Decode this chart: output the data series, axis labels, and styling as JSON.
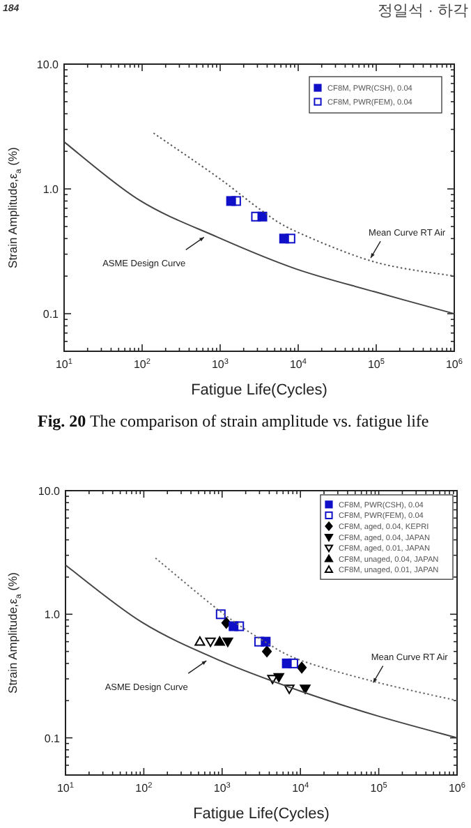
{
  "chart_data": [
    {
      "type": "line",
      "xlabel": "Fatigue Life(Cycles)",
      "ylabel": "Strain Amplitude,ε$_{a}$ (%)",
      "log": "xy",
      "xlim": [
        10,
        1000000
      ],
      "ylim": [
        0.05,
        10
      ],
      "xticks": [
        {
          "value": 10,
          "label": "10$^{1}$"
        },
        {
          "value": 100,
          "label": "10$^{2}$"
        },
        {
          "value": 1000,
          "label": "10$^{3}$"
        },
        {
          "value": 10000,
          "label": "10$^{4}$"
        },
        {
          "value": 100000,
          "label": "10$^{5}$"
        },
        {
          "value": 1000000,
          "label": "10$^{6}$"
        }
      ],
      "yticks": [
        {
          "value": 0.1,
          "label": "0.1"
        },
        {
          "value": 1,
          "label": "1.0"
        },
        {
          "value": 10,
          "label": "10.0"
        }
      ],
      "grid": false,
      "legend": "top right",
      "annotations": [
        {
          "text": "ASME Design Curve",
          "x": 620,
          "y": 0.41
        },
        {
          "text": "Mean Curve RT Air",
          "x": 85000,
          "y": 0.28
        },
        "184",
        "정일석 · 하각",
        "Fig. 20 The comparison of strain amplitude vs. fatigue life"
      ],
      "series": [
        {
          "x": [
            10,
            93,
            930,
            9100,
            95000,
            1000000
          ],
          "values": [
            2.38,
            0.81,
            0.41,
            0.23,
            0.15,
            0.1
          ],
          "color": "#444444",
          "line_style": "solid",
          "marker": "none"
        },
        {
          "x": [
            140,
            930,
            3300,
            9100,
            95000,
            1000000
          ],
          "values": [
            2.8,
            1.24,
            0.68,
            0.46,
            0.26,
            0.2
          ],
          "color": "#555555",
          "line_style": "dotted",
          "marker": "none"
        },
        {
          "type": "scatter",
          "name": "CF8M, PWR(CSH), 0.04",
          "x": [
            1380,
            3470,
            6600
          ],
          "values": [
            0.8,
            0.6,
            0.4
          ],
          "color": "#1010c8",
          "marker": "square"
        },
        {
          "type": "scatter",
          "name": "CF8M, PWR(FEM), 0.04",
          "x": [
            1600,
            2880,
            7950
          ],
          "values": [
            0.8,
            0.6,
            0.4
          ],
          "color": "#1010c8",
          "marker": "square_open"
        }
      ]
    },
    {
      "type": "line",
      "xlabel": "Fatigue Life(Cycles)",
      "ylabel": "Strain Amplitude,ε$_{a}$ (%)",
      "log": "xy",
      "xlim": [
        10,
        1000000
      ],
      "ylim": [
        0.05,
        10
      ],
      "xticks": [
        {
          "value": 10,
          "label": "10$^{1}$"
        },
        {
          "value": 100,
          "label": "10$^{2}$"
        },
        {
          "value": 1000,
          "label": "10$^{3}$"
        },
        {
          "value": 10000,
          "label": "10$^{4}$"
        },
        {
          "value": 100000,
          "label": "10$^{5}$"
        },
        {
          "value": 1000000,
          "label": "10$^{6}$"
        }
      ],
      "yticks": [
        {
          "value": 0.1,
          "label": "0.1"
        },
        {
          "value": 1,
          "label": "1.0"
        },
        {
          "value": 10,
          "label": "10.0"
        }
      ],
      "grid": false,
      "legend": "top right",
      "annotations": [
        {
          "text": "ASME Design Curve",
          "x": 630,
          "y": 0.42
        },
        {
          "text": "Mean Curve RT Air",
          "x": 85000,
          "y": 0.28
        }
      ],
      "series": [
        {
          "x": [
            10,
            95,
            955,
            9800,
            98000,
            1000000
          ],
          "values": [
            2.5,
            0.86,
            0.42,
            0.24,
            0.15,
            0.1
          ],
          "color": "#444444",
          "line_style": "solid",
          "marker": "none"
        },
        {
          "x": [
            141,
            955,
            3500,
            10500,
            98000,
            1000000
          ],
          "values": [
            2.85,
            1.05,
            0.6,
            0.42,
            0.28,
            0.2
          ],
          "color": "#666666",
          "line_style": "dotted",
          "marker": "none"
        },
        {
          "type": "scatter",
          "name": "CF8M, PWR(CSH), 0.04",
          "x": [
            1400,
            3600,
            6700
          ],
          "values": [
            0.8,
            0.6,
            0.4
          ],
          "color": "#1010c8",
          "marker": "square"
        },
        {
          "type": "scatter",
          "name": "CF8M, PWR(FEM), 0.04",
          "x": [
            960,
            1650,
            2970,
            8100
          ],
          "values": [
            1.0,
            0.8,
            0.6,
            0.4
          ],
          "color": "#1010c8",
          "marker": "square_open"
        },
        {
          "type": "scatter",
          "name": "CF8M, aged, 0.04, KEPRI",
          "x": [
            1130,
            3730,
            10400
          ],
          "values": [
            0.85,
            0.5,
            0.37
          ],
          "color": "#000000",
          "marker": "diamond"
        },
        {
          "type": "scatter",
          "name": "CF8M, aged, 0.04, JAPAN",
          "x": [
            1180,
            5300,
            11500
          ],
          "values": [
            0.6,
            0.31,
            0.25
          ],
          "color": "#000000",
          "marker": "triangle_down"
        },
        {
          "type": "scatter",
          "name": "CF8M, aged, 0.01, JAPAN",
          "x": [
            710,
            4400,
            7200
          ],
          "values": [
            0.6,
            0.3,
            0.25
          ],
          "color": "#000000",
          "marker": "triangle_down_open"
        },
        {
          "type": "scatter",
          "name": "CF8M, unaged, 0.04, JAPAN",
          "x": [
            930
          ],
          "values": [
            0.6
          ],
          "color": "#000000",
          "marker": "triangle"
        },
        {
          "type": "scatter",
          "name": "CF8M, unaged, 0.01, JAPAN",
          "x": [
            520
          ],
          "values": [
            0.6
          ],
          "color": "#000000",
          "marker": "triangle_open"
        }
      ]
    }
  ]
}
